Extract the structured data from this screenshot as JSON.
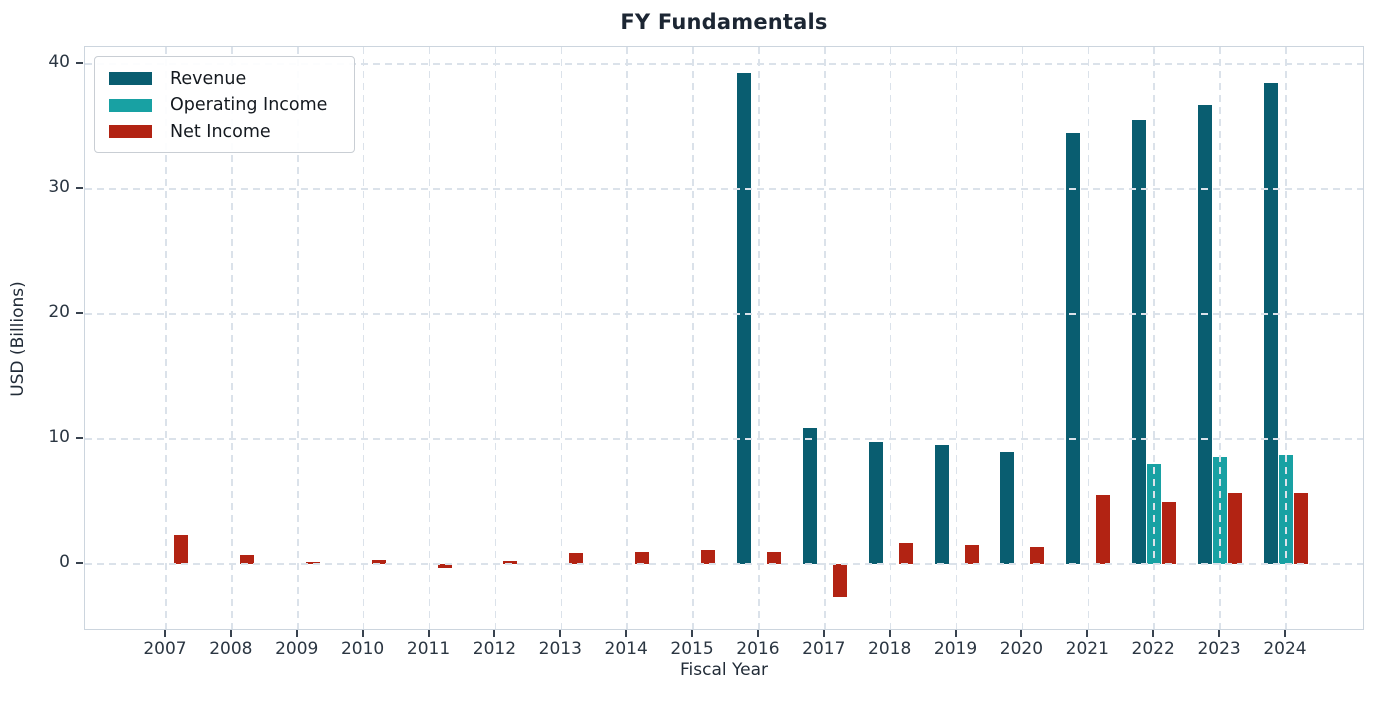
{
  "chart_data": {
    "type": "bar",
    "title": "FY Fundamentals",
    "xlabel": "Fiscal Year",
    "ylabel": "USD (Billions)",
    "categories": [
      "2007",
      "2008",
      "2009",
      "2010",
      "2011",
      "2012",
      "2013",
      "2014",
      "2015",
      "2016",
      "2017",
      "2018",
      "2019",
      "2020",
      "2021",
      "2022",
      "2023",
      "2024"
    ],
    "series": [
      {
        "name": "Revenue",
        "color": "#095d70",
        "values": [
          null,
          null,
          null,
          null,
          null,
          null,
          null,
          null,
          null,
          39.3,
          10.9,
          9.75,
          9.5,
          9.0,
          34.45,
          35.5,
          36.75,
          38.5
        ]
      },
      {
        "name": "Operating Income",
        "color": "#18a1a3",
        "values": [
          null,
          null,
          null,
          null,
          null,
          null,
          null,
          null,
          null,
          null,
          null,
          null,
          null,
          null,
          null,
          8.0,
          8.6,
          8.7
        ]
      },
      {
        "name": "Net Income",
        "color": "#b22313",
        "values": [
          2.35,
          0.75,
          0.15,
          0.35,
          -0.3,
          0.25,
          0.9,
          0.95,
          1.15,
          1.0,
          -2.6,
          1.7,
          1.5,
          1.35,
          5.5,
          5.0,
          5.65,
          5.7
        ]
      }
    ],
    "y_ticks": [
      0,
      10,
      20,
      30,
      40
    ],
    "ylim": [
      -5.4,
      41.4
    ],
    "grid": "dashed gridlines on both axes, drawn over bars",
    "legend_position": "upper left",
    "background_color": "#ffffff",
    "grid_color": "#dbe2ea",
    "text_color": "#2b3642"
  }
}
